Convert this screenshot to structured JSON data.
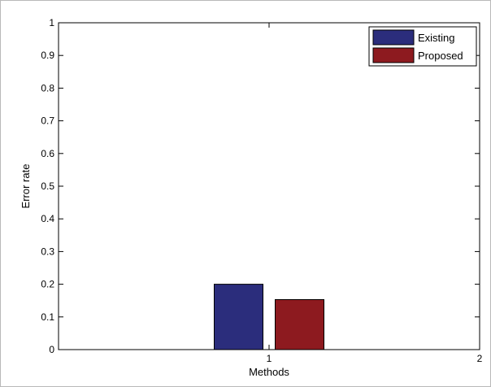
{
  "chart_data": {
    "type": "bar",
    "x_ticks": [
      1,
      2
    ],
    "y_ticks": [
      0,
      0.1,
      0.2,
      0.3,
      0.4,
      0.5,
      0.6,
      0.7,
      0.8,
      0.9,
      1
    ],
    "xlim": [
      0,
      2
    ],
    "ylim": [
      0,
      1
    ],
    "xlabel": "Methods",
    "ylabel": "Error rate",
    "grid": false,
    "legend_position": "top-right",
    "series": [
      {
        "name": "Existing",
        "x": 1,
        "value": 0.2,
        "color": "#2b2d7c"
      },
      {
        "name": "Proposed",
        "x": 1,
        "value": 0.153,
        "color": "#8d1a1f"
      }
    ]
  }
}
